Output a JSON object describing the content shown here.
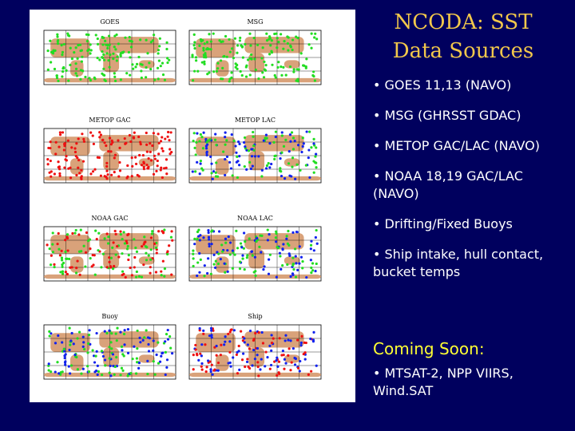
{
  "header": {
    "title": [
      "NCODA: SST",
      "Data Sources"
    ]
  },
  "maps": [
    {
      "label": "GOES"
    },
    {
      "label": "MSG"
    },
    {
      "label": "METOP GAC"
    },
    {
      "label": "METOP LAC"
    },
    {
      "label": "NOAA GAC"
    },
    {
      "label": "NOAA LAC"
    },
    {
      "label": "Buoy"
    },
    {
      "label": "Ship"
    }
  ],
  "bullets": [
    "• GOES 11,13 (NAVO)",
    "• MSG (GHRSST GDAC)",
    "• METOP GAC/LAC (NAVO)",
    "• NOAA 18,19 GAC/LAC (NAVO)",
    "• Drifting/Fixed Buoys",
    "• Ship intake, hull contact, bucket temps"
  ],
  "coming_soon": {
    "heading": "Coming Soon:",
    "bullets": [
      "• MTSAT-2, NPP VIIRS, Wind.SAT"
    ]
  }
}
